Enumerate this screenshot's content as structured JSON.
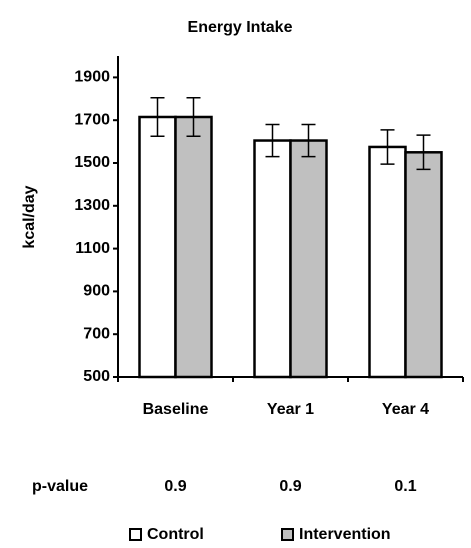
{
  "chart_data": {
    "type": "bar",
    "title": "Energy Intake",
    "y_label": "kcal/day",
    "categories": [
      "Baseline",
      "Year 1",
      "Year 4"
    ],
    "series": [
      {
        "name": "Control",
        "color": "#ffffff",
        "values": [
          1715,
          1605,
          1575
        ],
        "errors": [
          90,
          75,
          80
        ]
      },
      {
        "name": "Intervention",
        "color": "#c0c0c0",
        "values": [
          1715,
          1605,
          1550
        ],
        "errors": [
          90,
          75,
          80
        ]
      }
    ],
    "ylim": [
      500,
      2000
    ],
    "yticks": [
      500,
      700,
      900,
      1100,
      1300,
      1500,
      1700,
      1900
    ],
    "grid": false,
    "legend": "bottom",
    "p_value_label": "p-value",
    "p_values": [
      0.9,
      0.9,
      0.1
    ]
  }
}
